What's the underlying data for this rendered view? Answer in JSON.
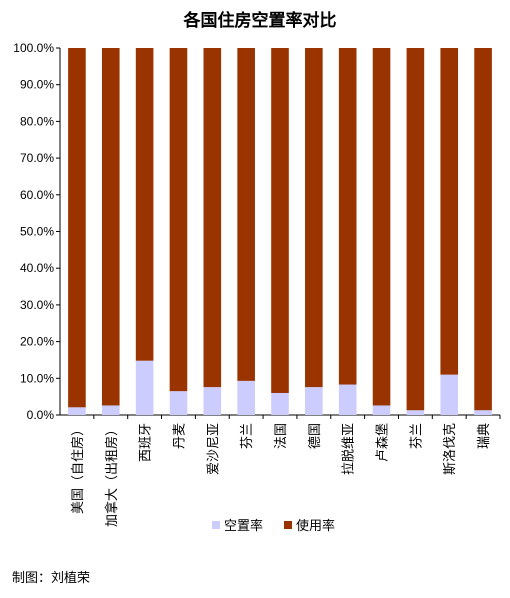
{
  "credit": "制图：刘植荣",
  "chart_data": {
    "type": "bar",
    "stacked": true,
    "title": "各国住房空置率对比",
    "xlabel": "",
    "ylabel": "",
    "ylim": [
      0,
      100
    ],
    "y_ticks": [
      "0.0%",
      "10.0%",
      "20.0%",
      "30.0%",
      "40.0%",
      "50.0%",
      "60.0%",
      "70.0%",
      "80.0%",
      "90.0%",
      "100.0%"
    ],
    "categories": [
      "美国（自住房）",
      "加拿大（出租房）",
      "西班牙",
      "丹麦",
      "爱沙尼亚",
      "芬兰",
      "法国",
      "德国",
      "拉脱维亚",
      "卢森堡",
      "芬兰",
      "斯洛伐克",
      "瑞典"
    ],
    "series": [
      {
        "name": "空置率",
        "color": "#ccccff",
        "values": [
          2.1,
          2.6,
          14.8,
          6.5,
          7.6,
          9.3,
          6.0,
          7.6,
          8.3,
          2.6,
          1.3,
          11.0,
          1.3
        ]
      },
      {
        "name": "使用率",
        "color": "#993300",
        "values": [
          97.9,
          97.4,
          85.2,
          93.5,
          92.4,
          90.7,
          94.0,
          92.4,
          91.7,
          97.4,
          98.7,
          89.0,
          98.7
        ]
      }
    ],
    "grid": false,
    "legend_position": "bottom"
  }
}
